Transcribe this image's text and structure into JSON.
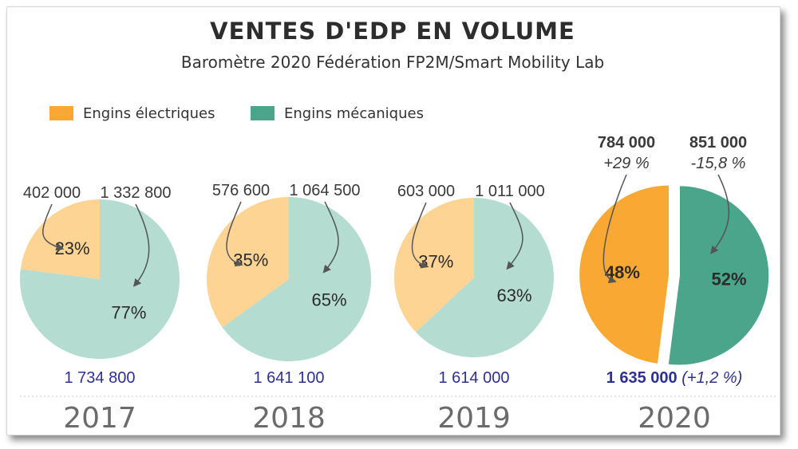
{
  "title": "VENTES D'EDP EN VOLUME",
  "subtitle": "Baromètre 2020 Fédération FP2M/Smart Mobility Lab",
  "legend": [
    {
      "label": "Engins électriques",
      "color": "#f9a833"
    },
    {
      "label": "Engins mécaniques",
      "color": "#4aa58a"
    }
  ],
  "colors": {
    "electric_light": "#fdd494",
    "mechanical_light": "#b4dcd1",
    "electric": "#f9a833",
    "mechanical": "#4aa58a",
    "total_text": "#2e3090",
    "year_muted": "#6b6b6b",
    "year_current": "#1a1a1a"
  },
  "chart_data": {
    "type": "pie",
    "pies": [
      {
        "year": "2017",
        "electric_value": "402 000",
        "mechanical_value": "1 332 800",
        "electric_pct": 23,
        "mechanical_pct": 77,
        "electric_label": "23%",
        "mechanical_label": "77%",
        "total": "1 734 800"
      },
      {
        "year": "2018",
        "electric_value": "576 600",
        "mechanical_value": "1 064 500",
        "electric_pct": 35,
        "mechanical_pct": 65,
        "electric_label": "35%",
        "mechanical_label": "65%",
        "total": "1 641 100"
      },
      {
        "year": "2019",
        "electric_value": "603 000",
        "mechanical_value": "1 011 000",
        "electric_pct": 37,
        "mechanical_pct": 63,
        "electric_label": "37%",
        "mechanical_label": "63%",
        "total": "1 614 000"
      },
      {
        "year": "2020",
        "electric_value": "784 000",
        "mechanical_value": "851 000",
        "electric_change": "+29 %",
        "mechanical_change": "-15,8 %",
        "electric_pct": 48,
        "mechanical_pct": 52,
        "electric_label": "48%",
        "mechanical_label": "52%",
        "total": "1 635 000",
        "total_change": "(+1,2 %)"
      }
    ]
  }
}
